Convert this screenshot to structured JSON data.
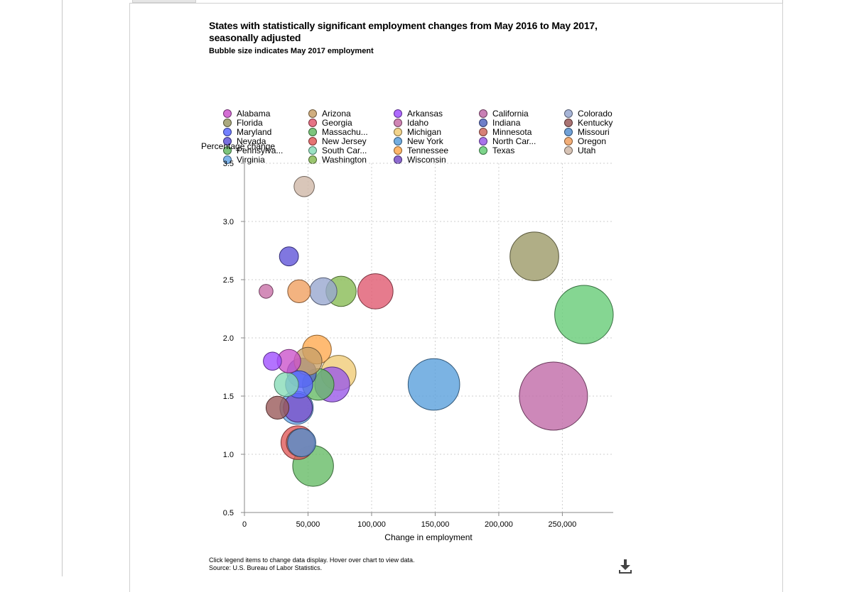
{
  "chart_data": {
    "type": "scatter",
    "title": "States with statistically significant employment changes from May 2016 to May 2017, seasonally adjusted",
    "subtitle": "Bubble size indicates May 2017 employment",
    "xlabel": "Change in employment",
    "ylabel": "Percentage change",
    "xlim": [
      0,
      290000
    ],
    "ylim": [
      0.5,
      3.5
    ],
    "x_ticks": [
      0,
      50000,
      100000,
      150000,
      200000,
      250000
    ],
    "x_tick_labels": [
      "0",
      "50,000",
      "100,000",
      "150,000",
      "200,000",
      "250,000"
    ],
    "y_ticks": [
      0.5,
      1.0,
      1.5,
      2.0,
      2.5,
      3.0,
      3.5
    ],
    "y_tick_labels": [
      "0.5",
      "1.0",
      "1.5",
      "2.0",
      "2.5",
      "3.0",
      "3.5"
    ],
    "grid": true,
    "legend_position": "top",
    "series": [
      {
        "name": "Alabama",
        "label": "Alabama",
        "color": "#cc55cc",
        "x": 35000,
        "y": 1.8,
        "employment": 2.0
      },
      {
        "name": "Arizona",
        "label": "Arizona",
        "color": "#c8a068",
        "x": 50000,
        "y": 1.8,
        "employment": 2.8
      },
      {
        "name": "Arkansas",
        "label": "Arkansas",
        "color": "#a050ff",
        "x": 22000,
        "y": 1.8,
        "employment": 1.2
      },
      {
        "name": "California",
        "label": "California",
        "color": "#c06aa8",
        "x": 243000,
        "y": 1.5,
        "employment": 16.8
      },
      {
        "name": "Colorado",
        "label": "Colorado",
        "color": "#98a8d0",
        "x": 62000,
        "y": 2.4,
        "employment": 2.7
      },
      {
        "name": "Florida",
        "label": "Florida",
        "color": "#9c9a68",
        "x": 228000,
        "y": 2.7,
        "employment": 8.6
      },
      {
        "name": "Georgia",
        "label": "Georgia",
        "color": "#e05a70",
        "x": 103000,
        "y": 2.4,
        "employment": 4.5
      },
      {
        "name": "Idaho",
        "label": "Idaho",
        "color": "#c870a8",
        "x": 17000,
        "y": 2.4,
        "employment": 0.7
      },
      {
        "name": "Indiana",
        "label": "Indiana",
        "color": "#5568c0",
        "x": 45000,
        "y": 1.7,
        "employment": 3.1
      },
      {
        "name": "Kentucky",
        "label": "Kentucky",
        "color": "#9a5a5a",
        "x": 26000,
        "y": 1.4,
        "employment": 1.9
      },
      {
        "name": "Maryland",
        "label": "Maryland",
        "color": "#5a6aff",
        "x": 43000,
        "y": 1.6,
        "employment": 2.7
      },
      {
        "name": "Massachusetts",
        "label": "Massachu...",
        "color": "#66bb66",
        "x": 58000,
        "y": 1.6,
        "employment": 3.6
      },
      {
        "name": "Michigan",
        "label": "Michigan",
        "color": "#f0cc78",
        "x": 74000,
        "y": 1.7,
        "employment": 4.4
      },
      {
        "name": "Minnesota",
        "label": "Minnesota",
        "color": "#d06a60",
        "x": 44000,
        "y": 1.1,
        "employment": 2.9
      },
      {
        "name": "Missouri",
        "label": "Missouri",
        "color": "#5890d0",
        "x": 45000,
        "y": 1.1,
        "employment": 2.9
      },
      {
        "name": "Nevada",
        "label": "Nevada",
        "color": "#6055d8",
        "x": 35000,
        "y": 2.7,
        "employment": 1.3
      },
      {
        "name": "New Jersey",
        "label": "New Jersey",
        "color": "#e05a5a",
        "x": 42000,
        "y": 1.1,
        "employment": 4.1
      },
      {
        "name": "New York",
        "label": "New York",
        "color": "#5aa0dc",
        "x": 149000,
        "y": 1.6,
        "employment": 9.6
      },
      {
        "name": "North Carolina",
        "label": "North Car...",
        "color": "#9a5ae8",
        "x": 69000,
        "y": 1.6,
        "employment": 4.4
      },
      {
        "name": "Oregon",
        "label": "Oregon",
        "color": "#f0a060",
        "x": 43000,
        "y": 2.4,
        "employment": 1.9
      },
      {
        "name": "Pennsylvania",
        "label": "Pennsylva...",
        "color": "#66bb66",
        "x": 54000,
        "y": 0.9,
        "employment": 6.0
      },
      {
        "name": "South Carolina",
        "label": "South Car...",
        "color": "#88dcb8",
        "x": 33000,
        "y": 1.6,
        "employment": 2.1
      },
      {
        "name": "Tennessee",
        "label": "Tennessee",
        "color": "#ffaa50",
        "x": 57000,
        "y": 1.9,
        "employment": 3.0
      },
      {
        "name": "Texas",
        "label": "Texas",
        "color": "#66cc77",
        "x": 267000,
        "y": 2.2,
        "employment": 12.4
      },
      {
        "name": "Utah",
        "label": "Utah",
        "color": "#d0b8a8",
        "x": 47000,
        "y": 3.3,
        "employment": 1.5
      },
      {
        "name": "Virginia",
        "label": "Virginia",
        "color": "#6aa8e8",
        "x": 41000,
        "y": 1.4,
        "employment": 4.0
      },
      {
        "name": "Washington",
        "label": "Washington",
        "color": "#88bb55",
        "x": 76000,
        "y": 2.4,
        "employment": 3.3
      },
      {
        "name": "Wisconsin",
        "label": "Wisconsin",
        "color": "#7a50c8",
        "x": 42000,
        "y": 1.4,
        "employment": 3.0
      }
    ]
  },
  "footer": {
    "instructions": "Click legend items to change data display. Hover over chart to view data.",
    "source": "Source: U.S. Bureau of Labor Statistics."
  },
  "toolbar": {
    "download_icon": "download-icon"
  }
}
